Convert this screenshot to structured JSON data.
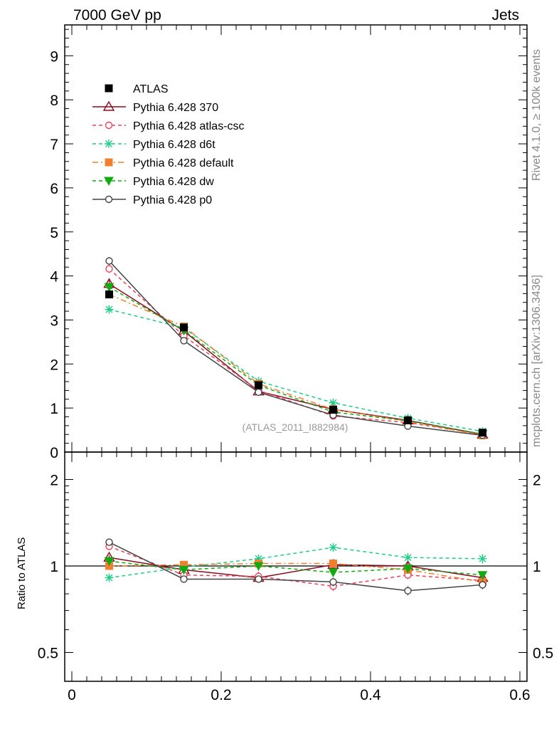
{
  "header": {
    "left": "7000 GeV pp",
    "right": "Jets"
  },
  "side_labels": {
    "rivet": "Rivet 4.1.0, ≥ 100k events",
    "source": "mcplots.cern.ch [arXiv:1306.3436]"
  },
  "analysis_id": "(ATLAS_2011_I882984)",
  "ratio_ylabel": "Ratio to ATLAS",
  "chart_data": [
    {
      "type": "line",
      "panel": "main",
      "xlim": [
        0,
        0.6
      ],
      "ylim": [
        0,
        9.7
      ],
      "yticks": [
        0,
        1,
        2,
        3,
        4,
        5,
        6,
        7,
        8,
        9
      ],
      "xticks": [
        0,
        0.2,
        0.4,
        0.6
      ],
      "x": [
        0.05,
        0.15,
        0.25,
        0.35,
        0.45,
        0.55
      ],
      "series": [
        {
          "name": "ATLAS",
          "color": "#000000",
          "marker": "square-filled",
          "line": "none",
          "values": [
            3.58,
            2.83,
            1.52,
            0.96,
            0.72,
            0.44
          ],
          "errors": [
            0.08,
            0.05,
            0.03,
            0.02,
            0.02,
            0.02
          ]
        },
        {
          "name": "Pythia 6.428 370",
          "color": "#8b0a1e",
          "marker": "triangle-open",
          "line": "solid",
          "values": [
            3.82,
            2.75,
            1.38,
            0.97,
            0.72,
            0.4
          ],
          "errors": [
            0.08,
            0.05,
            0.04,
            0.03,
            0.02,
            0.02
          ]
        },
        {
          "name": "Pythia 6.428 atlas-csc",
          "color": "#f0405a",
          "marker": "circle-open",
          "line": "dashed",
          "values": [
            4.16,
            2.64,
            1.4,
            0.82,
            0.67,
            0.4
          ],
          "errors": [
            0.09,
            0.05,
            0.04,
            0.03,
            0.02,
            0.02
          ]
        },
        {
          "name": "Pythia 6.428 d6t",
          "color": "#22cc88",
          "marker": "star",
          "line": "dashed",
          "values": [
            3.24,
            2.82,
            1.61,
            1.12,
            0.77,
            0.47
          ],
          "errors": [
            0.08,
            0.05,
            0.04,
            0.03,
            0.02,
            0.02
          ]
        },
        {
          "name": "Pythia 6.428 default",
          "color": "#f08030",
          "marker": "square-filled",
          "line": "dashdot",
          "values": [
            3.58,
            2.85,
            1.55,
            0.97,
            0.7,
            0.38
          ],
          "errors": [
            0.08,
            0.05,
            0.04,
            0.03,
            0.02,
            0.02
          ]
        },
        {
          "name": "Pythia 6.428 dw",
          "color": "#11aa11",
          "marker": "triangle-down-filled",
          "line": "dashed",
          "values": [
            3.75,
            2.76,
            1.52,
            0.91,
            0.71,
            0.41
          ],
          "errors": [
            0.08,
            0.05,
            0.04,
            0.03,
            0.02,
            0.02
          ]
        },
        {
          "name": "Pythia 6.428 p0",
          "color": "#444444",
          "marker": "circle-open",
          "line": "solid",
          "values": [
            4.34,
            2.53,
            1.36,
            0.84,
            0.59,
            0.38
          ],
          "errors": [
            0.09,
            0.05,
            0.04,
            0.03,
            0.02,
            0.02
          ]
        }
      ]
    },
    {
      "type": "line",
      "panel": "ratio",
      "ylabel": "Ratio to ATLAS",
      "ylim": [
        0.43,
        2.3
      ],
      "yscale": "log",
      "yticks": [
        0.5,
        1,
        2
      ],
      "xlim": [
        0,
        0.6
      ],
      "xticks": [
        0,
        0.2,
        0.4,
        0.6
      ],
      "x": [
        0.05,
        0.15,
        0.25,
        0.35,
        0.45,
        0.55
      ],
      "series": [
        {
          "name": "Pythia 6.428 370",
          "color": "#8b0a1e",
          "values": [
            1.07,
            0.97,
            0.91,
            1.01,
            1.0,
            0.91
          ],
          "errors": [
            0.02,
            0.02,
            0.02,
            0.03,
            0.03,
            0.03
          ]
        },
        {
          "name": "Pythia 6.428 atlas-csc",
          "color": "#f0405a",
          "values": [
            1.17,
            0.93,
            0.92,
            0.85,
            0.93,
            0.89
          ],
          "errors": [
            0.02,
            0.02,
            0.02,
            0.03,
            0.03,
            0.03
          ]
        },
        {
          "name": "Pythia 6.428 d6t",
          "color": "#22cc88",
          "values": [
            0.91,
            0.99,
            1.06,
            1.16,
            1.07,
            1.06
          ],
          "errors": [
            0.02,
            0.02,
            0.03,
            0.03,
            0.03,
            0.04
          ]
        },
        {
          "name": "Pythia 6.428 default",
          "color": "#f08030",
          "values": [
            1.0,
            1.01,
            1.02,
            1.02,
            0.97,
            0.88
          ],
          "errors": [
            0.02,
            0.02,
            0.03,
            0.03,
            0.03,
            0.03
          ]
        },
        {
          "name": "Pythia 6.428 dw",
          "color": "#11aa11",
          "values": [
            1.04,
            0.97,
            1.0,
            0.95,
            0.98,
            0.93
          ],
          "errors": [
            0.02,
            0.02,
            0.03,
            0.03,
            0.03,
            0.03
          ]
        },
        {
          "name": "Pythia 6.428 p0",
          "color": "#444444",
          "values": [
            1.21,
            0.9,
            0.9,
            0.88,
            0.82,
            0.86
          ],
          "errors": [
            0.02,
            0.02,
            0.02,
            0.03,
            0.03,
            0.03
          ]
        }
      ]
    }
  ]
}
